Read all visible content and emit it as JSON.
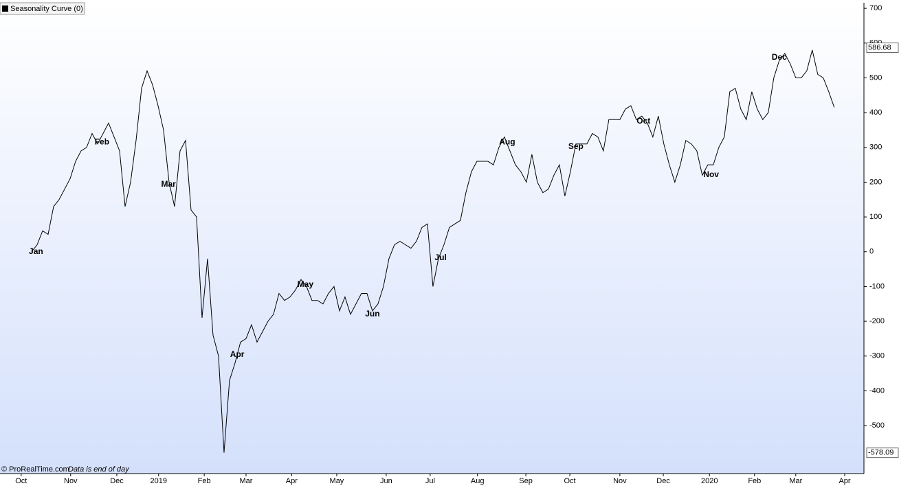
{
  "chart_data": {
    "type": "line",
    "series": [
      {
        "name": "Seasonality Curve (0)",
        "color": "#000000",
        "values": [
          0,
          20,
          60,
          50,
          130,
          150,
          180,
          210,
          260,
          290,
          300,
          340,
          310,
          340,
          370,
          330,
          290,
          130,
          200,
          320,
          470,
          520,
          480,
          420,
          350,
          200,
          130,
          290,
          320,
          120,
          100,
          -190,
          -20,
          -240,
          -300,
          -578,
          -370,
          -320,
          -260,
          -250,
          -210,
          -260,
          -230,
          -200,
          -180,
          -120,
          -140,
          -130,
          -110,
          -80,
          -100,
          -140,
          -140,
          -150,
          -120,
          -100,
          -170,
          -130,
          -180,
          -150,
          -120,
          -120,
          -170,
          -150,
          -100,
          -20,
          20,
          30,
          20,
          10,
          30,
          70,
          80,
          -100,
          -20,
          20,
          70,
          80,
          90,
          170,
          230,
          260,
          260,
          260,
          250,
          300,
          330,
          290,
          250,
          230,
          200,
          280,
          200,
          170,
          180,
          220,
          250,
          160,
          230,
          310,
          310,
          310,
          340,
          330,
          290,
          380,
          380,
          380,
          410,
          420,
          380,
          390,
          370,
          330,
          390,
          310,
          250,
          200,
          250,
          320,
          310,
          290,
          220,
          250,
          250,
          300,
          330,
          460,
          470,
          410,
          380,
          460,
          410,
          380,
          400,
          500,
          550,
          570,
          540,
          500,
          500,
          520,
          580,
          510,
          500,
          460,
          415
        ]
      }
    ],
    "xlim": [
      -5.75,
      151.4
    ],
    "xticks": [
      {
        "value": -1.9,
        "label": "Oct"
      },
      {
        "value": 7.1,
        "label": "Nov"
      },
      {
        "value": 15.5,
        "label": "Dec"
      },
      {
        "value": 23.1,
        "label": "2019"
      },
      {
        "value": 31.4,
        "label": "Feb"
      },
      {
        "value": 39,
        "label": "Mar"
      },
      {
        "value": 47.3,
        "label": "Apr"
      },
      {
        "value": 55.5,
        "label": "May"
      },
      {
        "value": 64.5,
        "label": "Jun"
      },
      {
        "value": 72.5,
        "label": "Jul"
      },
      {
        "value": 81.1,
        "label": "Aug"
      },
      {
        "value": 89.9,
        "label": "Sep"
      },
      {
        "value": 97.9,
        "label": "Oct"
      },
      {
        "value": 107,
        "label": "Nov"
      },
      {
        "value": 114.9,
        "label": "Dec"
      },
      {
        "value": 123.3,
        "label": "2020"
      },
      {
        "value": 131.5,
        "label": "Feb"
      },
      {
        "value": 139,
        "label": "Mar"
      },
      {
        "value": 147.9,
        "label": "Apr"
      }
    ],
    "ylim": [
      -638,
      716
    ],
    "yticks": [
      700,
      600,
      500,
      400,
      300,
      200,
      100,
      0,
      -100,
      -200,
      -300,
      -400,
      -500
    ],
    "axis_markers": [
      586.68,
      -578.09
    ],
    "annotations": [
      {
        "text": "Jan",
        "x": 0.8,
        "y": 0
      },
      {
        "text": "Feb",
        "x": 12.8,
        "y": 315
      },
      {
        "text": "Mar",
        "x": 24.9,
        "y": 193
      },
      {
        "text": "Apr",
        "x": 37.4,
        "y": -296
      },
      {
        "text": "May",
        "x": 49.8,
        "y": -95
      },
      {
        "text": "Jun",
        "x": 62,
        "y": -180
      },
      {
        "text": "Jul",
        "x": 74.4,
        "y": -18
      },
      {
        "text": "Aug",
        "x": 86.5,
        "y": 315
      },
      {
        "text": "Sep",
        "x": 99,
        "y": 302
      },
      {
        "text": "Oct",
        "x": 111.3,
        "y": 375
      },
      {
        "text": "Nov",
        "x": 123.6,
        "y": 221
      },
      {
        "text": "Dec",
        "x": 136,
        "y": 558
      }
    ],
    "annotation_color": "#0000cc",
    "footer": [
      "© ProRealTime.com",
      "Data is end of day"
    ]
  }
}
